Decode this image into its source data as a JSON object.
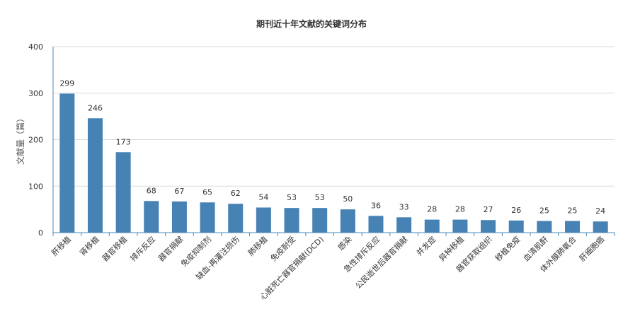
{
  "chart_data": {
    "type": "bar",
    "title": "期刊近十年文献的关键词分布",
    "xlabel": "",
    "ylabel": "文献量（篇）",
    "ylim": [
      0,
      400
    ],
    "yticks": [
      0,
      100,
      200,
      300,
      400
    ],
    "grid": true,
    "bar_color": "#4682b4",
    "categories": [
      "肝移植",
      "肾移植",
      "器官移植",
      "排斥反应",
      "器官捐献",
      "免疫抑制剂",
      "缺血-再灌注损伤",
      "肺移植",
      "免疫耐受",
      "心脏死亡器官捐献(DCD)",
      "感染",
      "急性排斥反应",
      "公民逝世后器官捐献",
      "并发症",
      "异种移植",
      "器官获取组织",
      "移植免疫",
      "血清肌酐",
      "体外膜肺氧合",
      "肝细胞癌"
    ],
    "values": [
      299,
      246,
      173,
      68,
      67,
      65,
      62,
      54,
      53,
      53,
      50,
      36,
      33,
      28,
      28,
      27,
      26,
      25,
      25,
      24
    ]
  }
}
